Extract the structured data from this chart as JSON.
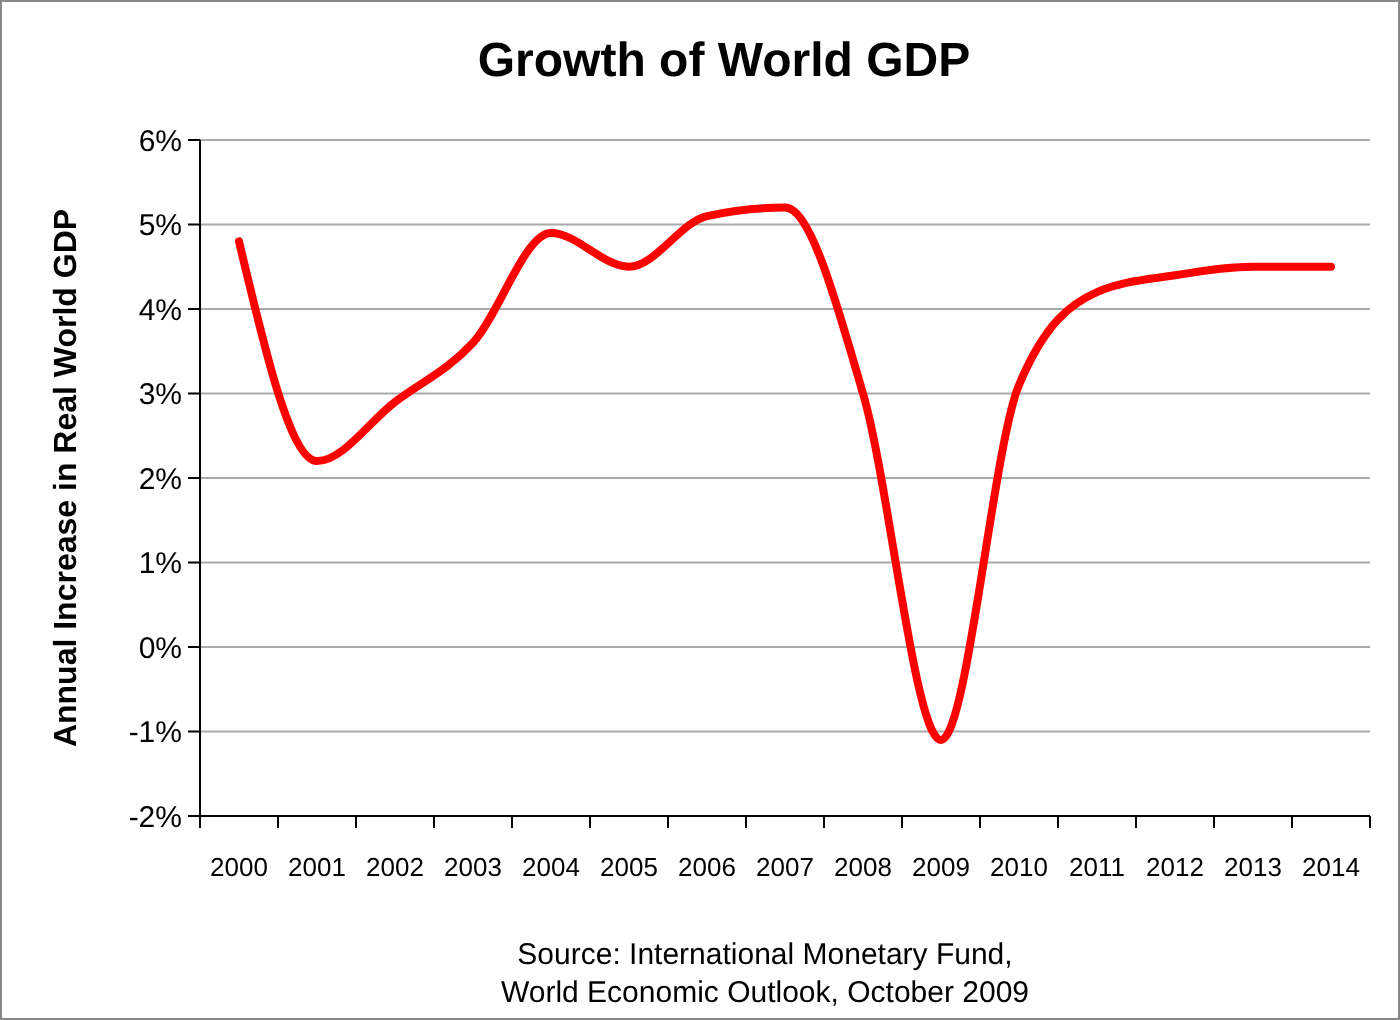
{
  "chart_data": {
    "type": "line",
    "title": "Growth of World GDP",
    "ylabel": "Annual Increase in Real World GDP",
    "categories": [
      "2000",
      "2001",
      "2002",
      "2003",
      "2004",
      "2005",
      "2006",
      "2007",
      "2008",
      "2009",
      "2010",
      "2011",
      "2012",
      "2013",
      "2014"
    ],
    "series": [
      {
        "color": "#ff0000",
        "values": [
          4.8,
          2.2,
          2.9,
          3.6,
          4.9,
          4.5,
          5.1,
          5.2,
          3.0,
          -1.1,
          3.1,
          4.2,
          4.4,
          4.5,
          4.5
        ]
      }
    ],
    "ylim": [
      -2,
      6
    ],
    "yticks": [
      {
        "value": -2,
        "label": "-2%"
      },
      {
        "value": -1,
        "label": "-1%"
      },
      {
        "value": 0,
        "label": "0%"
      },
      {
        "value": 1,
        "label": "1%"
      },
      {
        "value": 2,
        "label": "2%"
      },
      {
        "value": 3,
        "label": "3%"
      },
      {
        "value": 4,
        "label": "4%"
      },
      {
        "value": 5,
        "label": "5%"
      },
      {
        "value": 6,
        "label": "6%"
      }
    ],
    "grid": "y",
    "marker": "none",
    "line_style": "solid",
    "annotations": [
      "Source: International Monetary Fund,\nWorld Economic Outlook, October 2009"
    ]
  }
}
